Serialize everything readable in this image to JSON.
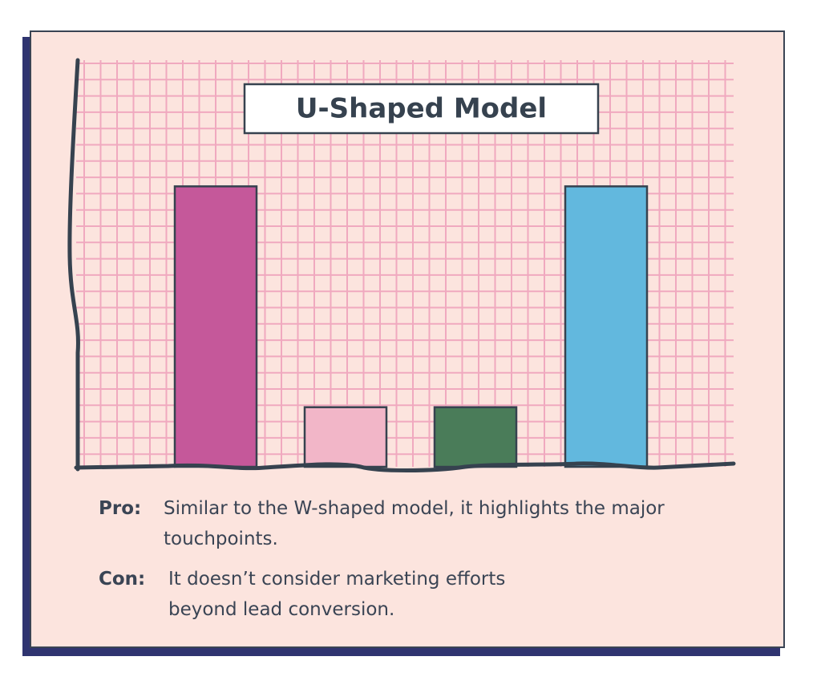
{
  "chart_data": {
    "type": "bar",
    "title": "U-Shaped Model",
    "values": [
      40,
      8.5,
      8.5,
      40
    ],
    "colors": [
      "#c5589a",
      "#f2b6c8",
      "#4a7c59",
      "#62b8de"
    ],
    "ylim": [
      0,
      58
    ],
    "grid": true,
    "notes": [
      {
        "label": "Pro:",
        "text": "Similar to the W-shaped model, it highlights the major touchpoints."
      },
      {
        "label": "Con:",
        "text": "It doesn’t consider marketing efforts beyond lead conversion."
      }
    ]
  }
}
